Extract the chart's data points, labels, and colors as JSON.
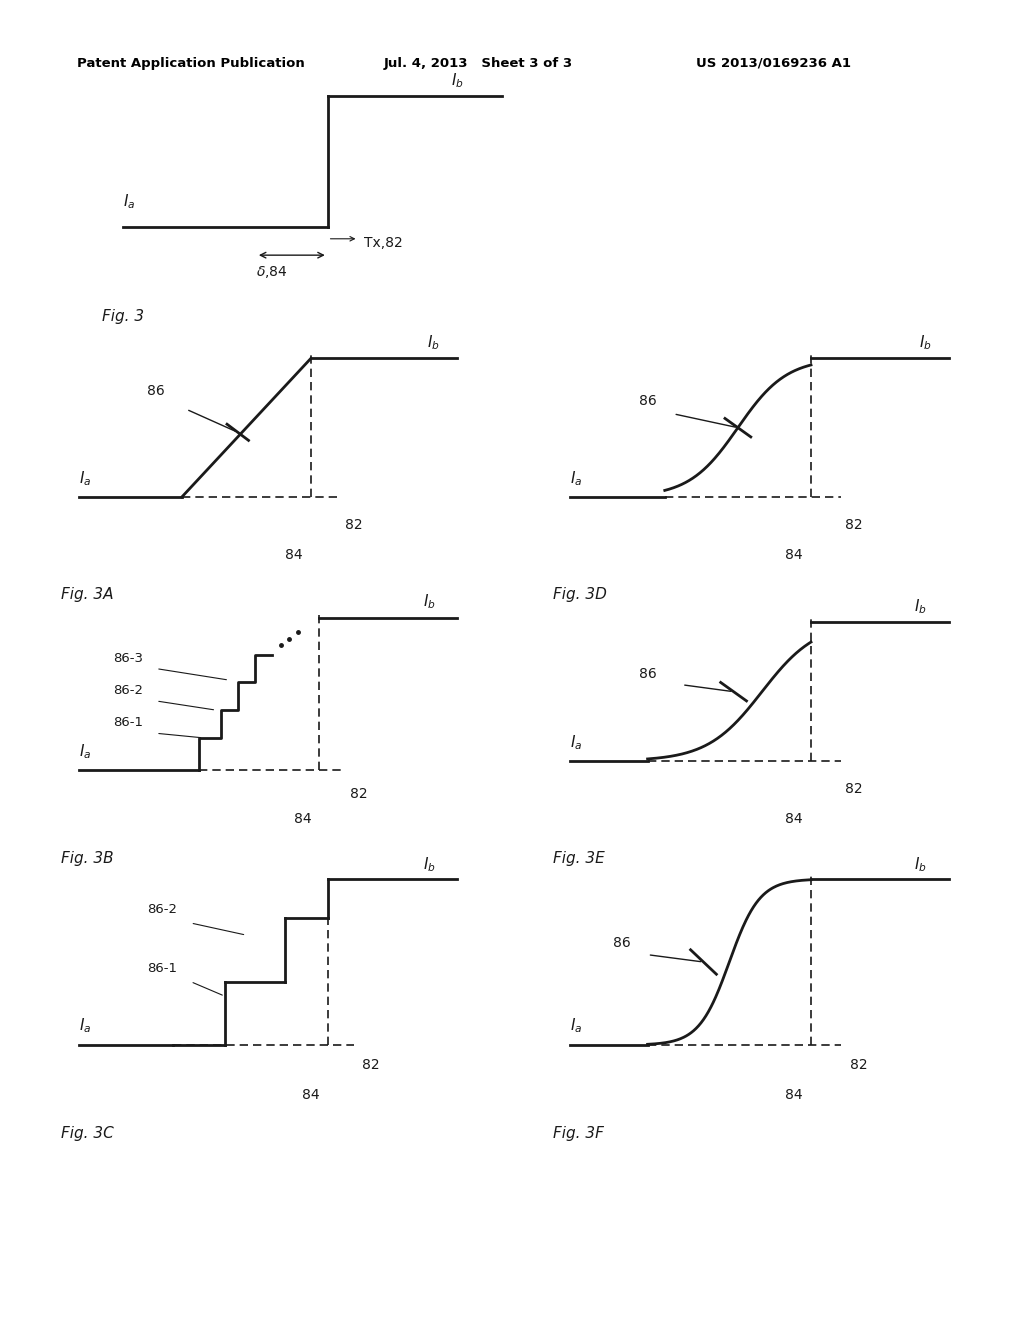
{
  "bg_color": "#ffffff",
  "line_color": "#1a1a1a",
  "header_left": "Patent Application Publication",
  "header_center": "Jul. 4, 2013   Sheet 3 of 3",
  "header_right": "US 2013/0169236 A1",
  "lw": 2.0,
  "lw_dash": 1.2,
  "fig3_label": "Fig. 3",
  "fig3a_label": "Fig. 3A",
  "fig3b_label": "Fig. 3B",
  "fig3c_label": "Fig. 3C",
  "fig3d_label": "Fig. 3D",
  "fig3e_label": "Fig. 3E",
  "fig3f_label": "Fig. 3F"
}
